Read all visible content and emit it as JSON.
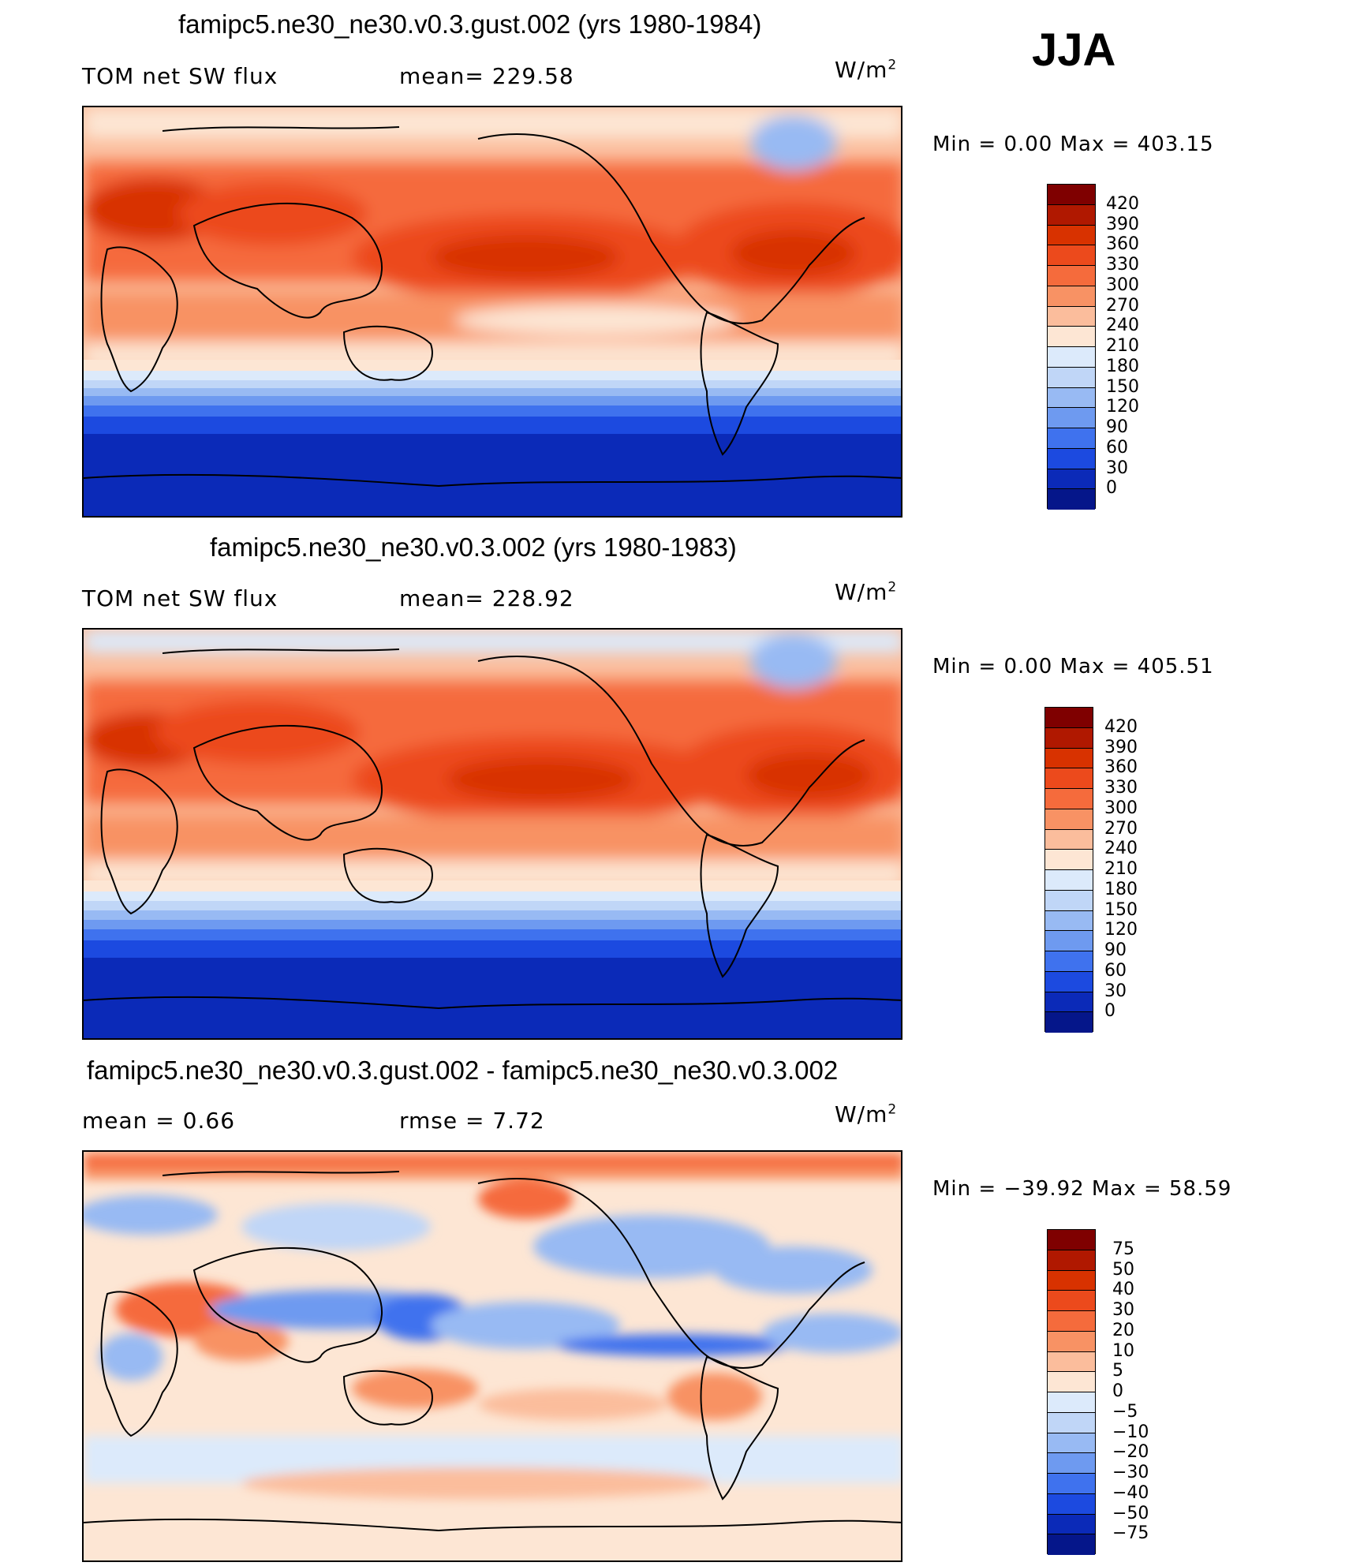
{
  "season": "JJA",
  "panels": [
    {
      "title": "famipc5.ne30_ne30.v0.3.gust.002 (yrs 1980-1984)",
      "left_label": "TOM net SW flux",
      "center_label": "mean=  229.58",
      "units": "W/m",
      "units_sup": "2",
      "minmax": "Min =    0.00 Max = 403.15",
      "legend_labels": [
        "420",
        "390",
        "360",
        "330",
        "300",
        "270",
        "240",
        "210",
        "180",
        "150",
        "120",
        "90",
        "60",
        "30",
        "0"
      ],
      "legend_colors": [
        "#7f0000",
        "#b01800",
        "#d83200",
        "#ec4a1c",
        "#f56b3c",
        "#f89264",
        "#fbbd9c",
        "#fde6d4",
        "#dceafb",
        "#c0d6f7",
        "#98baf3",
        "#6e9af0",
        "#3f72ee",
        "#1c4ae0",
        "#0b2ab8",
        "#05168a"
      ]
    },
    {
      "title": "famipc5.ne30_ne30.v0.3.002 (yrs 1980-1983)",
      "left_label": "TOM net SW flux",
      "center_label": "mean=  228.92",
      "units": "W/m",
      "units_sup": "2",
      "minmax": "Min =    0.00 Max = 405.51",
      "legend_labels": [
        "420",
        "390",
        "360",
        "330",
        "300",
        "270",
        "240",
        "210",
        "180",
        "150",
        "120",
        "90",
        "60",
        "30",
        "0"
      ],
      "legend_colors": [
        "#7f0000",
        "#b01800",
        "#d83200",
        "#ec4a1c",
        "#f56b3c",
        "#f89264",
        "#fbbd9c",
        "#fde6d4",
        "#dceafb",
        "#c0d6f7",
        "#98baf3",
        "#6e9af0",
        "#3f72ee",
        "#1c4ae0",
        "#0b2ab8",
        "#05168a"
      ]
    },
    {
      "title": "famipc5.ne30_ne30.v0.3.gust.002 - famipc5.ne30_ne30.v0.3.002",
      "left_label": "mean =    0.66",
      "center_label": "rmse =    7.72",
      "units": "W/m",
      "units_sup": "2",
      "minmax": "Min = −39.92 Max =   58.59",
      "legend_labels": [
        "75",
        "50",
        "40",
        "30",
        "20",
        "10",
        "5",
        "0",
        "−5",
        "−10",
        "−20",
        "−30",
        "−40",
        "−50",
        "−75"
      ],
      "legend_colors": [
        "#7f0000",
        "#b01800",
        "#d83200",
        "#ec4a1c",
        "#f56b3c",
        "#f89264",
        "#fbbd9c",
        "#fde6d4",
        "#dceafb",
        "#c0d6f7",
        "#98baf3",
        "#6e9af0",
        "#3f72ee",
        "#1c4ae0",
        "#0b2ab8",
        "#05168a"
      ]
    }
  ]
}
